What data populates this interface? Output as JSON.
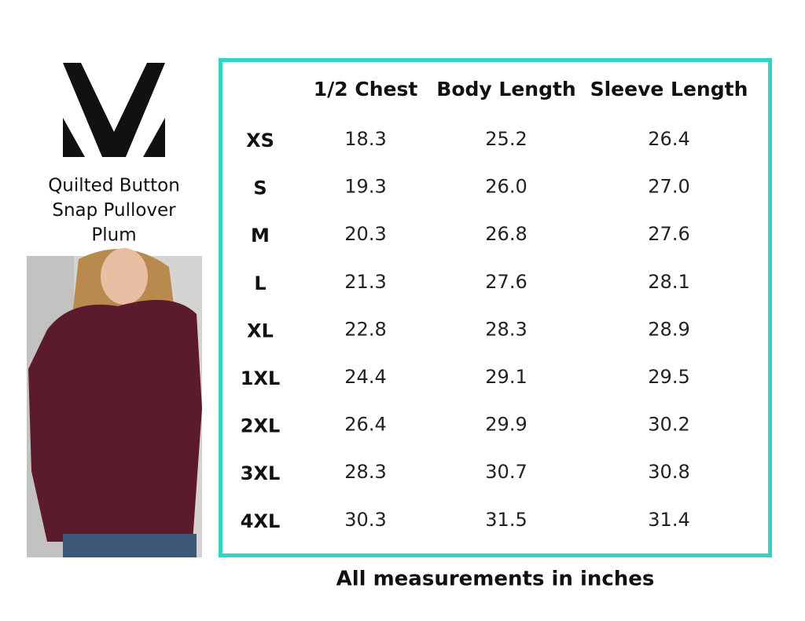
{
  "product": {
    "lines": [
      "Quilted Button",
      "Snap Pullover",
      "Plum"
    ]
  },
  "table": {
    "headers": [
      "1/2 Chest",
      "Body Length",
      "Sleeve Length"
    ],
    "rows": [
      [
        "XS",
        "18.3",
        "25.2",
        "26.4"
      ],
      [
        "S",
        "19.3",
        "26.0",
        "27.0"
      ],
      [
        "M",
        "20.3",
        "26.8",
        "27.6"
      ],
      [
        "L",
        "21.3",
        "27.6",
        "28.1"
      ],
      [
        "XL",
        "22.8",
        "28.3",
        "28.9"
      ],
      [
        "1XL",
        "24.4",
        "29.1",
        "29.5"
      ],
      [
        "2XL",
        "26.4",
        "29.9",
        "30.2"
      ],
      [
        "3XL",
        "28.3",
        "30.7",
        "30.8"
      ],
      [
        "4XL",
        "30.3",
        "31.5",
        "31.4"
      ]
    ]
  },
  "footer": "All measurements in inches"
}
